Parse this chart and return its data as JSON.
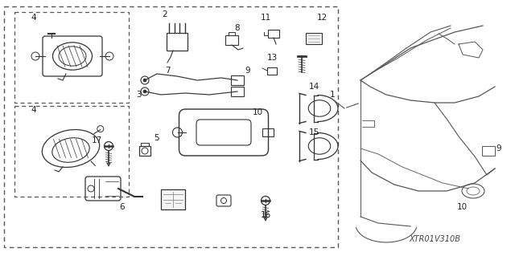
{
  "bg_color": "#ffffff",
  "image_code": "XTR01V310B",
  "line_color": "#333333",
  "fig_w": 6.4,
  "fig_h": 3.19,
  "dpi": 100
}
